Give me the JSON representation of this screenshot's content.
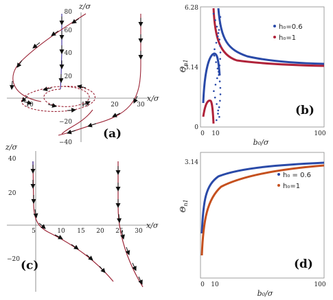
{
  "panels": {
    "a": {
      "label": "(a)",
      "xlabel": "x/σ",
      "zlabel": "z/σ",
      "x_ticks": [
        "10",
        "10",
        "20",
        "30"
      ],
      "z_ticks": [
        "80",
        "60",
        "40",
        "20",
        "−20",
        "−40"
      ]
    },
    "b": {
      "label": "(b)",
      "xlabel": "b₀/σ",
      "ylabel": "Θ",
      "ylabel_sub": "n1",
      "x_ticks": [
        "0",
        "10",
        "100"
      ],
      "y_ticks": [
        "6.28",
        "3.14",
        "0"
      ],
      "legend": [
        "h₀=0.6",
        "h₀=1"
      ]
    },
    "c": {
      "label": "(c)",
      "xlabel": "x/σ",
      "zlabel": "z/σ",
      "x_ticks": [
        "5",
        "10",
        "15",
        "20",
        "25",
        "30"
      ],
      "z_ticks": [
        "40",
        "20",
        "−20"
      ]
    },
    "d": {
      "label": "(d)",
      "xlabel": "b₀/σ",
      "ylabel": "Θ",
      "ylabel_sub": "n1",
      "x_ticks": [
        "0",
        "10",
        "100"
      ],
      "y_ticks": [
        "3.14"
      ],
      "legend": [
        "h₀ = 0.6",
        "h₀=1"
      ]
    }
  },
  "colors": {
    "blue": "#2a4aa8",
    "red": "#b0233a",
    "orange": "#c5501e",
    "trajectory": "#9b2335",
    "arrow": "#111111"
  },
  "chart_data": [
    {
      "panel": "b",
      "type": "line",
      "xlabel": "b₀/σ",
      "ylabel": "Θ_n1",
      "xlim": [
        0,
        100
      ],
      "ylim": [
        0,
        6.28
      ],
      "series": [
        {
          "name": "h₀=0.6",
          "x": [
            14.5,
            16,
            18,
            20,
            25,
            30,
            40,
            50,
            70,
            100
          ],
          "y": [
            6.28,
            5.2,
            4.6,
            4.25,
            3.85,
            3.65,
            3.45,
            3.38,
            3.3,
            3.24
          ]
        },
        {
          "name": "h₀=1",
          "x": [
            10.5,
            11,
            12,
            14,
            16,
            20,
            30,
            50,
            70,
            100
          ],
          "y": [
            6.28,
            5.4,
            4.5,
            3.95,
            3.75,
            3.55,
            3.35,
            3.22,
            3.18,
            3.16
          ]
        }
      ]
    },
    {
      "panel": "d",
      "type": "line",
      "xlabel": "b₀/σ",
      "ylabel": "Θ_n1",
      "xlim": [
        0,
        100
      ],
      "ylim": [
        0,
        3.14
      ],
      "series": [
        {
          "name": "h₀ = 0.6",
          "x": [
            0,
            1,
            3,
            5,
            10,
            20,
            40,
            60,
            100
          ],
          "y": [
            1.7,
            2.2,
            2.55,
            2.72,
            2.88,
            2.99,
            3.05,
            3.08,
            3.1
          ]
        },
        {
          "name": "h₀=1",
          "x": [
            0,
            1,
            3,
            5,
            10,
            20,
            40,
            60,
            100
          ],
          "y": [
            0.3,
            1.5,
            2.15,
            2.4,
            2.68,
            2.88,
            2.99,
            3.03,
            3.07
          ]
        }
      ]
    }
  ]
}
